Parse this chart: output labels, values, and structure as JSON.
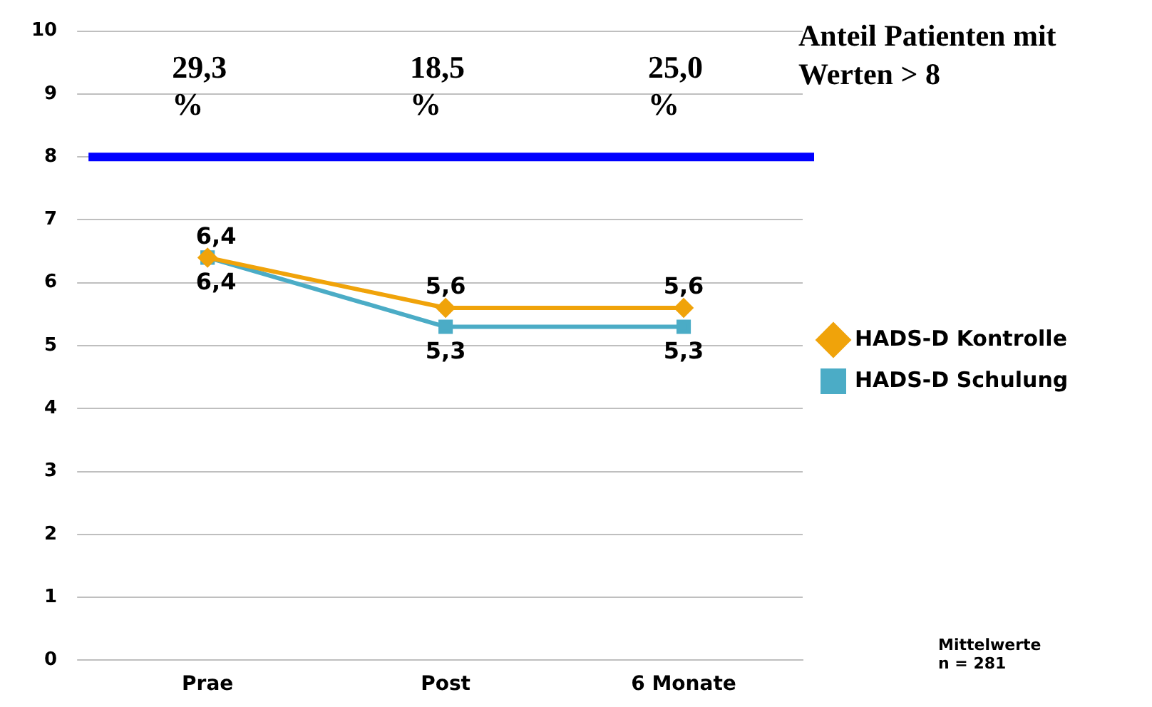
{
  "chart_data": {
    "type": "line",
    "title": "Anteil Patienten mit Werten > 8",
    "categories": [
      "Prae",
      "Post",
      "6 Monate"
    ],
    "series": [
      {
        "name": "HADS-D Kontrolle",
        "color": "#f0a30a",
        "values": [
          6.4,
          5.6,
          5.6
        ],
        "marker": "diamond",
        "value_labels": [
          "6,4",
          "5,6",
          "5,6"
        ]
      },
      {
        "name": "HADS-D Schulung",
        "color": "#4bacc6",
        "values": [
          6.4,
          5.3,
          5.3
        ],
        "marker": "square",
        "value_labels": [
          "6,4",
          "5,3",
          "5,3"
        ]
      }
    ],
    "ylim": [
      0,
      10
    ],
    "yticks": [
      0,
      1,
      2,
      3,
      4,
      5,
      6,
      7,
      8,
      9,
      10
    ],
    "grid": "y",
    "legend": "right",
    "ref_lines": [
      {
        "axis": "y",
        "value": 8,
        "color": "#0000ff"
      }
    ],
    "annotations": [
      "29,3 %",
      "18,5 %",
      "25,0 %",
      "Mittelwerte n = 281"
    ]
  }
}
